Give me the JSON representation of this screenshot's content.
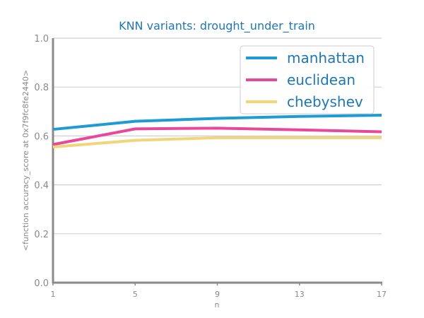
{
  "chart_data": {
    "type": "line",
    "title": "KNN variants: drought_under_train",
    "xlabel": "n",
    "ylabel": "<function accuracy_score at 0x7f9fc8fe2440>",
    "x": [
      1,
      5,
      9,
      13,
      17
    ],
    "xticks": [
      "1",
      "5",
      "9",
      "13",
      "17"
    ],
    "yticks": [
      "0.0",
      "0.2",
      "0.4",
      "0.6",
      "0.8",
      "1.0"
    ],
    "xlim": [
      1,
      17
    ],
    "ylim": [
      0,
      1
    ],
    "grid": "horizontal",
    "legend_position": "top-right",
    "series": [
      {
        "name": "manhattan",
        "color": "#1f9bd4",
        "values": [
          0.627,
          0.66,
          0.672,
          0.68,
          0.685
        ]
      },
      {
        "name": "euclidean",
        "color": "#e8489a",
        "values": [
          0.565,
          0.629,
          0.632,
          0.625,
          0.617
        ]
      },
      {
        "name": "chebyshev",
        "color": "#f0d57a",
        "values": [
          0.555,
          0.582,
          0.593,
          0.593,
          0.593
        ]
      }
    ],
    "colors": {
      "title": "#1f77b4",
      "axis": "#8a8a8a",
      "grid": "#d0d0d0",
      "legend_text": "#1f77b4"
    }
  }
}
